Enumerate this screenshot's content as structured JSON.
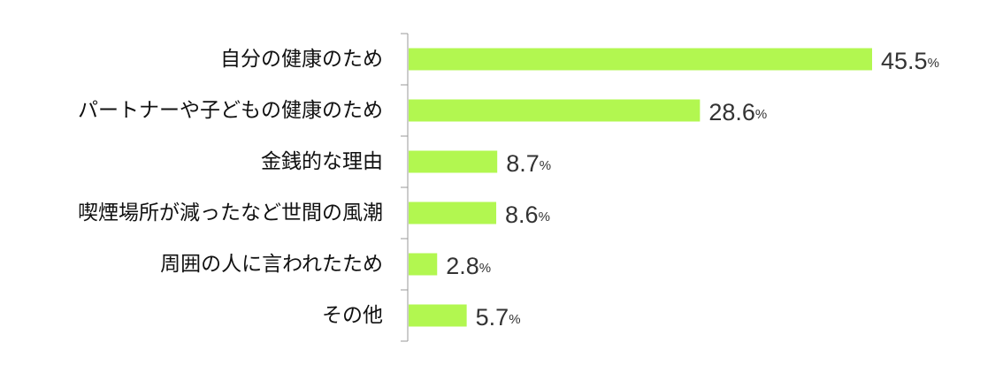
{
  "chart_data": {
    "type": "bar",
    "orientation": "horizontal",
    "categories": [
      "自分の健康のため",
      "パートナーや子どもの健康のため",
      "金銭的な理由",
      "喫煙場所が減ったなど世間の風潮",
      "周囲の人に言われたため",
      "その他"
    ],
    "values": [
      45.5,
      28.6,
      8.7,
      8.6,
      2.8,
      5.7
    ],
    "value_labels": [
      "45.5",
      "28.6",
      "8.7",
      "8.6",
      "2.8",
      "5.7"
    ],
    "unit": "%",
    "xlim": [
      0,
      50
    ],
    "grid": false,
    "legend": "none",
    "colors": {
      "bar": "#b2f750",
      "axis": "#999999",
      "label": "#111111",
      "value": "#333333"
    }
  }
}
